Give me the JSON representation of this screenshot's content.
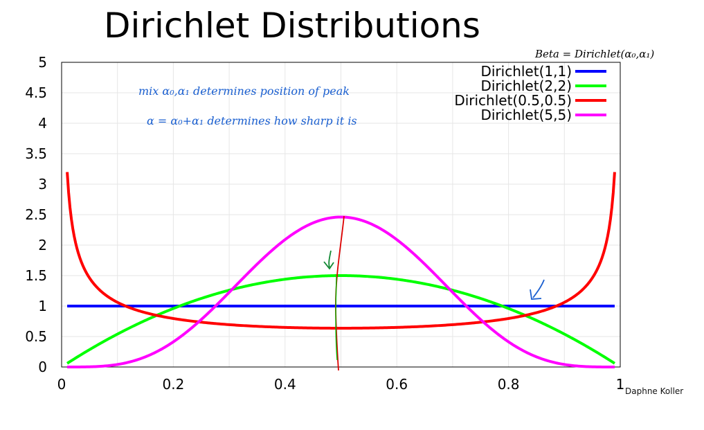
{
  "title": "Dirichlet Distributions",
  "author": "Daphne Koller",
  "annotations": {
    "top_right": "Beta = Dirichlet(α₀,α₁)",
    "line1": "mix  α₀,α₁   determines   position  of peak",
    "line2": "α = α₀+α₁    determines  how sharp it is"
  },
  "chart_data": {
    "type": "line",
    "title": "",
    "xlabel": "",
    "ylabel": "",
    "xlim": [
      0,
      1
    ],
    "ylim": [
      0,
      5
    ],
    "xticks": [
      "0",
      "0.2",
      "0.4",
      "0.6",
      "0.8",
      "1"
    ],
    "yticks": [
      "0",
      "0.5",
      "1",
      "1.5",
      "2",
      "2.5",
      "3",
      "3.5",
      "4",
      "4.5",
      "5"
    ],
    "grid": true,
    "legend_position": "top-right",
    "series": [
      {
        "name": "Dirichlet(1,1)",
        "alpha": [
          1,
          1
        ],
        "color": "#0000ff"
      },
      {
        "name": "Dirichlet(2,2)",
        "alpha": [
          2,
          2
        ],
        "color": "#00ff00"
      },
      {
        "name": "Dirichlet(0.5,0.5)",
        "alpha": [
          0.5,
          0.5
        ],
        "color": "#ff0000"
      },
      {
        "name": "Dirichlet(5,5)",
        "alpha": [
          5,
          5
        ],
        "color": "#ff00ff"
      }
    ]
  }
}
